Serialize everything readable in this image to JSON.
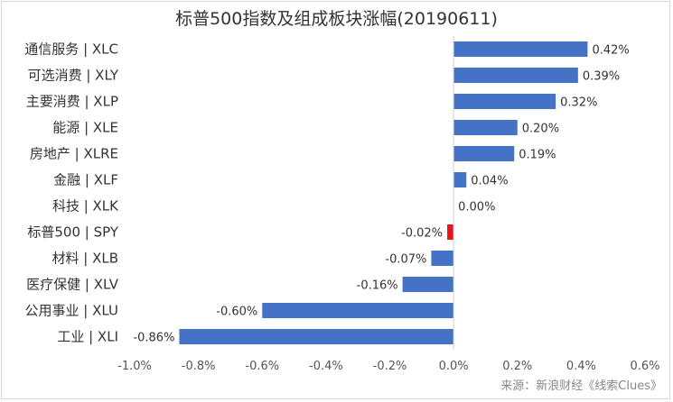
{
  "title": "标普500指数及组成板块涨幅(20190611)",
  "source": "来源：新浪财经《线索Clues》",
  "chart_data": {
    "type": "bar",
    "orientation": "horizontal",
    "title": "标普500指数及组成板块涨幅(20190611)",
    "categories": [
      "通信服务 | XLC",
      "可选消费 | XLY",
      "主要消费 | XLP",
      "能源 | XLE",
      "房地产 | XLRE",
      "金融 | XLF",
      "科技 | XLK",
      "标普500 | SPY",
      "材料 | XLB",
      "医疗保健 | XLV",
      "公用事业 | XLU",
      "工业 | XLI"
    ],
    "values": [
      0.42,
      0.39,
      0.32,
      0.2,
      0.19,
      0.04,
      0.0,
      -0.02,
      -0.07,
      -0.16,
      -0.6,
      -0.86
    ],
    "value_labels": [
      "0.42%",
      "0.39%",
      "0.32%",
      "0.20%",
      "0.19%",
      "0.04%",
      "0.00%",
      "-0.02%",
      "-0.07%",
      "-0.16%",
      "-0.60%",
      "-0.86%"
    ],
    "colors": {
      "default": "#4472C4",
      "highlight": "#E8141C"
    },
    "highlight_index": 7,
    "xlim": [
      -1.0,
      0.6
    ],
    "xticks": [
      -1.0,
      -0.8,
      -0.6,
      -0.4,
      -0.2,
      0.0,
      0.2,
      0.4,
      0.6
    ],
    "xtick_labels": [
      "-1.0%",
      "-0.8%",
      "-0.6%",
      "-0.4%",
      "-0.2%",
      "0.0%",
      "0.2%",
      "0.4%",
      "0.6%"
    ],
    "grid": false,
    "legend": "none"
  }
}
